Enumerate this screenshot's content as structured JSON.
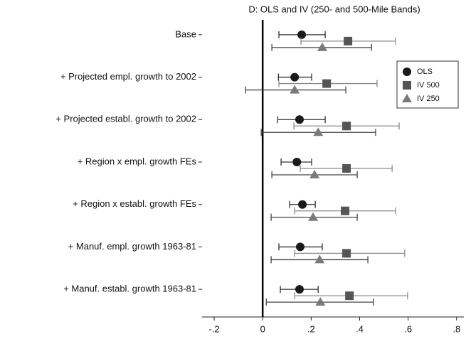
{
  "chart_data": {
    "type": "coefplot",
    "subtitle": "D: OLS and IV (250- and 500-Mile Bands)",
    "categories": [
      "Base",
      "+ Projected empl. growth to 2002",
      "+ Projected establ. growth to 2002",
      "+ Region x empl. growth FEs",
      "+ Region x establ. growth FEs",
      "+ Manuf. empl. growth 1963-81",
      "+ Manuf. establ. growth 1963-81"
    ],
    "series": [
      {
        "name": "OLS",
        "color": "#1a1a1a",
        "whisker_color": "#333333",
        "marker": "circle",
        "values": [
          0.161,
          0.132,
          0.152,
          0.141,
          0.164,
          0.155,
          0.152
        ],
        "lower": [
          0.067,
          0.065,
          0.062,
          0.076,
          0.111,
          0.067,
          0.073
        ],
        "upper": [
          0.258,
          0.202,
          0.258,
          0.202,
          0.217,
          0.246,
          0.229
        ]
      },
      {
        "name": "IV 500",
        "color": "#555555",
        "whisker_color": "#8a8a8a",
        "marker": "square",
        "values": [
          0.352,
          0.264,
          0.346,
          0.346,
          0.34,
          0.346,
          0.358
        ],
        "lower": [
          0.158,
          0.067,
          0.129,
          0.155,
          0.132,
          0.132,
          0.132
        ],
        "upper": [
          0.548,
          0.472,
          0.563,
          0.534,
          0.548,
          0.586,
          0.598
        ]
      },
      {
        "name": "IV 250",
        "color": "#7a7a7a",
        "whisker_color": "#444444",
        "marker": "triangle",
        "values": [
          0.246,
          0.132,
          0.229,
          0.214,
          0.208,
          0.235,
          0.238
        ],
        "lower": [
          0.038,
          -0.07,
          -0.006,
          0.038,
          0.035,
          0.035,
          0.015
        ],
        "upper": [
          0.449,
          0.343,
          0.466,
          0.39,
          0.39,
          0.434,
          0.457
        ]
      }
    ],
    "xlim": [
      -0.25,
      0.83
    ],
    "xticks": [
      {
        "value": -0.2,
        "label": "-.2"
      },
      0,
      {
        "value": 0.2,
        "label": ".2"
      },
      {
        "value": 0.4,
        "label": ".4"
      },
      {
        "value": 0.6,
        "label": ".6"
      },
      {
        "value": 0.8,
        "label": ".8"
      }
    ],
    "reference_line": 0,
    "legend": "top-right"
  }
}
